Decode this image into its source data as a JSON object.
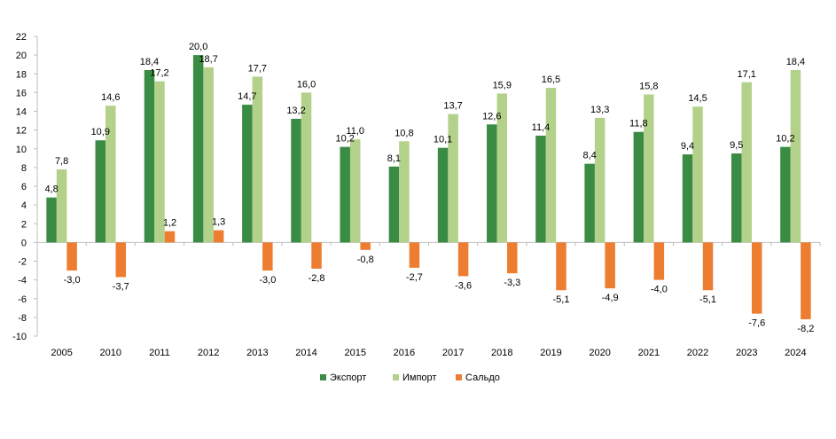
{
  "chart_data": {
    "type": "bar",
    "title": "",
    "xlabel": "",
    "ylabel": "",
    "ylim": [
      -10,
      22
    ],
    "ytick_step": 2,
    "grid": false,
    "legend_position": "bottom",
    "decimal_separator": ",",
    "categories": [
      "2005",
      "2010",
      "2011",
      "2012",
      "2013",
      "2014",
      "2015",
      "2016",
      "2017",
      "2018",
      "2019",
      "2020",
      "2021",
      "2022",
      "2023",
      "2024"
    ],
    "series": [
      {
        "name": "Экспорт",
        "color": "#3a8b43",
        "values": [
          4.8,
          10.9,
          18.4,
          20.0,
          14.7,
          13.2,
          10.2,
          8.1,
          10.1,
          12.6,
          11.4,
          8.4,
          11.8,
          9.4,
          9.5,
          10.2
        ]
      },
      {
        "name": "Импорт",
        "color": "#b3d18a",
        "values": [
          7.8,
          14.6,
          17.2,
          18.7,
          17.7,
          16.0,
          11.0,
          10.8,
          13.7,
          15.9,
          16.5,
          13.3,
          15.8,
          14.5,
          17.1,
          18.4
        ]
      },
      {
        "name": "Сальдо",
        "color": "#ed7d31",
        "values": [
          -3.0,
          -3.7,
          1.2,
          1.3,
          -3.0,
          -2.8,
          -0.8,
          -2.7,
          -3.6,
          -3.3,
          -5.1,
          -4.9,
          -4.0,
          -5.1,
          -7.6,
          -8.2
        ]
      }
    ]
  }
}
